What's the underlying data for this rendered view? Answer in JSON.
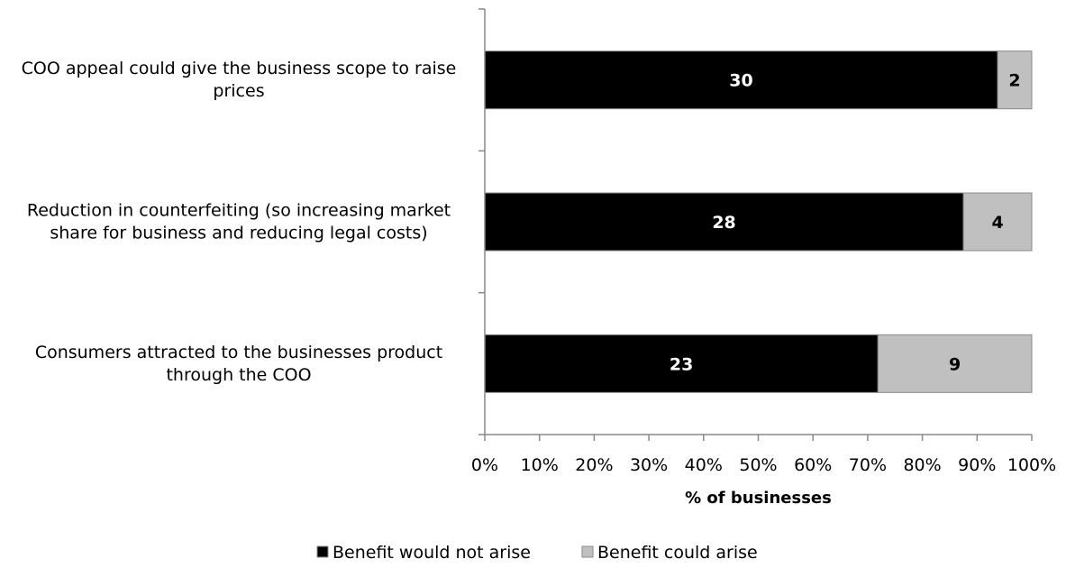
{
  "chart_data": {
    "type": "bar",
    "orientation": "horizontal",
    "stacked": "percent",
    "categories": [
      [
        "COO appeal could give the business scope to raise",
        "prices"
      ],
      [
        "Reduction in counterfeiting (so increasing market",
        "share for business and reducing legal costs)"
      ],
      [
        "Consumers attracted to the businesses product",
        "through the COO"
      ]
    ],
    "series": [
      {
        "name": "Benefit would not arise",
        "values": [
          30,
          28,
          23
        ],
        "color": "#000000",
        "label_color": "#ffffff"
      },
      {
        "name": "Benefit could arise",
        "values": [
          2,
          4,
          9
        ],
        "color": "#c0c0c0",
        "label_color": "#000000"
      }
    ],
    "xlabel": "% of businesses",
    "xlim": [
      0,
      100
    ],
    "x_ticks": [
      "0%",
      "10%",
      "20%",
      "30%",
      "40%",
      "50%",
      "60%",
      "70%",
      "80%",
      "90%",
      "100%"
    ],
    "legend": "bottom",
    "grid": false
  }
}
